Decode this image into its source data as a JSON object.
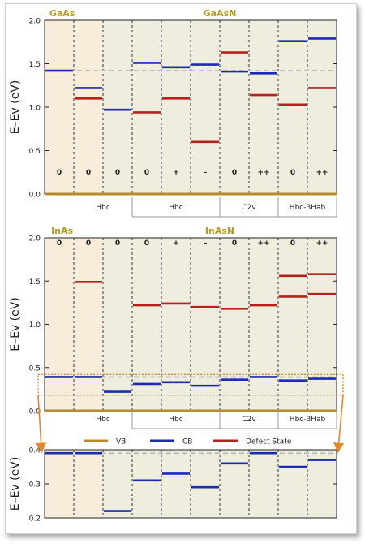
{
  "colors": {
    "vb": "#b8892e",
    "cb": "#1c2bb0",
    "defect": "#b3221c",
    "bg_host": "#f8edda",
    "bg_alloy": "#eeedde",
    "grid": "#7a7a7a",
    "dash_ref": "#bfbfbf",
    "highlight": "#e0882e",
    "title_gold": "#b59a20"
  },
  "labels": {
    "ylabel": "E–Ev (eV)"
  },
  "legend": {
    "vb": "VB",
    "cb": "CB",
    "defect": "Defect State"
  },
  "chart_data": [
    {
      "id": "gaas",
      "type": "bar",
      "title_host": "GaAs",
      "title_alloy": "GaAsN",
      "ylim": [
        0,
        2.0
      ],
      "yticks": [
        "0.0",
        "0.5",
        "1.0",
        "1.5",
        "2.0"
      ],
      "reference_level": 1.42,
      "charge_labels": [
        "0",
        "0",
        "0",
        "0",
        "+",
        "–",
        "0",
        "++",
        "0",
        "++"
      ],
      "groups": [
        {
          "label": "Hbc",
          "start": 1,
          "end": 2
        },
        {
          "label": "Hbc",
          "start": 3,
          "end": 5
        },
        {
          "label": "C2v",
          "start": 6,
          "end": 7
        },
        {
          "label": "Hbc-3Hab",
          "start": 8,
          "end": 9
        }
      ],
      "cb": [
        1.42,
        1.22,
        0.97,
        1.51,
        1.46,
        1.49,
        1.41,
        1.39,
        1.76,
        1.79
      ],
      "defects": [
        {
          "col": 1,
          "value": 1.1
        },
        {
          "col": 3,
          "value": 0.94
        },
        {
          "col": 4,
          "value": 1.1
        },
        {
          "col": 5,
          "value": 0.6
        },
        {
          "col": 6,
          "value": 1.63
        },
        {
          "col": 7,
          "value": 1.14
        },
        {
          "col": 8,
          "value": 1.03
        },
        {
          "col": 9,
          "value": 1.22
        }
      ]
    },
    {
      "id": "inas",
      "type": "bar",
      "title_host": "InAs",
      "title_alloy": "InAsN",
      "ylim": [
        0,
        2.0
      ],
      "yticks": [
        "0.0",
        "0.5",
        "1.0",
        "1.5",
        "2.0"
      ],
      "reference_level": 0.39,
      "charge_labels": [
        "0",
        "0",
        "0",
        "0",
        "+",
        "–",
        "0",
        "++",
        "0",
        "++"
      ],
      "groups": [
        {
          "label": "Hbc",
          "start": 1,
          "end": 2
        },
        {
          "label": "Hbc",
          "start": 3,
          "end": 5
        },
        {
          "label": "C2v",
          "start": 6,
          "end": 7
        },
        {
          "label": "Hbc-3Hab",
          "start": 8,
          "end": 9
        }
      ],
      "cb": [
        0.39,
        0.39,
        0.22,
        0.31,
        0.33,
        0.29,
        0.36,
        0.39,
        0.35,
        0.37
      ],
      "defects": [
        {
          "col": 1,
          "value": 1.49
        },
        {
          "col": 3,
          "value": 1.22
        },
        {
          "col": 4,
          "value": 1.24
        },
        {
          "col": 5,
          "value": 1.2
        },
        {
          "col": 6,
          "value": 1.18
        },
        {
          "col": 7,
          "value": 1.22
        },
        {
          "col": 8,
          "value": 1.32
        },
        {
          "col": 8,
          "value": 1.56
        },
        {
          "col": 9,
          "value": 1.35
        },
        {
          "col": 9,
          "value": 1.58
        }
      ]
    },
    {
      "id": "inas-zoom",
      "type": "bar",
      "ylim": [
        0.2,
        0.4
      ],
      "yticks": [
        "0.2",
        "0.3",
        "0.4"
      ],
      "reference_level": 0.39,
      "cb": [
        0.39,
        0.39,
        0.22,
        0.31,
        0.33,
        0.29,
        0.36,
        0.39,
        0.35,
        0.37
      ],
      "defects": []
    }
  ]
}
